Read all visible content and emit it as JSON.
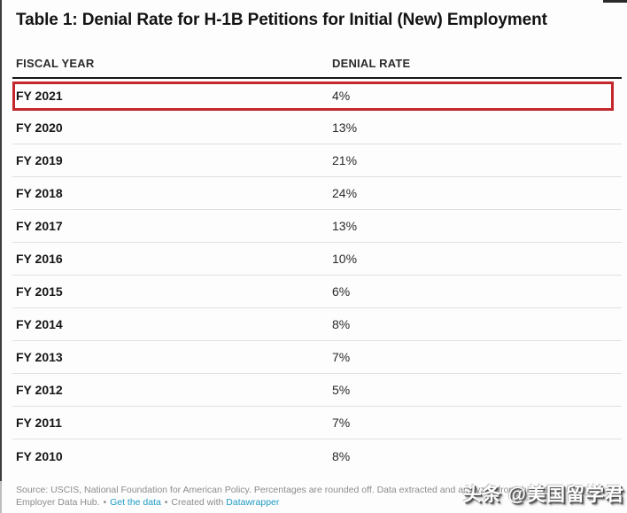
{
  "title": "Table 1: Denial Rate for H-1B Petitions for Initial (New) Employment",
  "table": {
    "columns": [
      "FISCAL YEAR",
      "DENIAL RATE"
    ],
    "rows": [
      {
        "year": "FY 2021",
        "rate": "4%",
        "highlighted": true
      },
      {
        "year": "FY 2020",
        "rate": "13%",
        "highlighted": false
      },
      {
        "year": "FY 2019",
        "rate": "21%",
        "highlighted": false
      },
      {
        "year": "FY 2018",
        "rate": "24%",
        "highlighted": false
      },
      {
        "year": "FY 2017",
        "rate": "13%",
        "highlighted": false
      },
      {
        "year": "FY 2016",
        "rate": "10%",
        "highlighted": false
      },
      {
        "year": "FY 2015",
        "rate": "6%",
        "highlighted": false
      },
      {
        "year": "FY 2014",
        "rate": "8%",
        "highlighted": false
      },
      {
        "year": "FY 2013",
        "rate": "7%",
        "highlighted": false
      },
      {
        "year": "FY 2012",
        "rate": "5%",
        "highlighted": false
      },
      {
        "year": "FY 2011",
        "rate": "7%",
        "highlighted": false
      },
      {
        "year": "FY 2010",
        "rate": "8%",
        "highlighted": false
      }
    ]
  },
  "chart_data": {
    "type": "table",
    "title": "Table 1: Denial Rate for H-1B Petitions for Initial (New) Employment",
    "columns": [
      "FISCAL YEAR",
      "DENIAL RATE"
    ],
    "categories": [
      "FY 2021",
      "FY 2020",
      "FY 2019",
      "FY 2018",
      "FY 2017",
      "FY 2016",
      "FY 2015",
      "FY 2014",
      "FY 2013",
      "FY 2012",
      "FY 2011",
      "FY 2010"
    ],
    "values": [
      4,
      13,
      21,
      24,
      13,
      10,
      6,
      8,
      7,
      5,
      7,
      8
    ],
    "unit": "%",
    "highlighted_category": "FY 2021"
  },
  "footer": {
    "line1": "Source: USCIS, National Foundation for American Policy. Percentages are rounded off. Data extracted and analyzed from the H-1B",
    "line2_prefix": "Employer Data Hub.",
    "bullet": "•",
    "get_data_link": "Get the data",
    "created_with": "Created with",
    "datawrapper_link": "Datawrapper"
  },
  "watermark": {
    "text": "头条 @美国留学君"
  },
  "colors": {
    "highlight_border": "#c4272c",
    "link": "#1d9bc4",
    "header_rule": "#161616",
    "divider": "#e0e0e0",
    "footer_text": "#8c8c8c"
  }
}
